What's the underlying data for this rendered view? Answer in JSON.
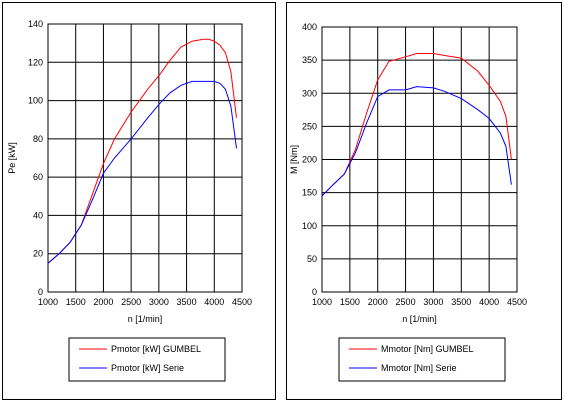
{
  "chart_data": [
    {
      "type": "line",
      "title": "",
      "xlabel": "n [1/min]",
      "ylabel": "Pe [kW]",
      "xlim": [
        1000,
        4500
      ],
      "ylim": [
        0,
        140
      ],
      "x_ticks": [
        1000,
        1500,
        2000,
        2500,
        3000,
        3500,
        4000,
        4500
      ],
      "y_ticks": [
        0,
        20,
        40,
        60,
        80,
        100,
        120,
        140
      ],
      "grid": true,
      "legend_position": "bottom",
      "series": [
        {
          "name": "Pmotor [kW] GUMBEL",
          "color": "#ff0000",
          "x": [
            1000,
            1200,
            1400,
            1600,
            1800,
            2000,
            2200,
            2500,
            2800,
            3000,
            3200,
            3400,
            3600,
            3800,
            3900,
            4000,
            4100,
            4200,
            4300,
            4400
          ],
          "y": [
            15,
            20,
            26,
            35,
            51,
            67,
            80,
            94,
            106,
            113,
            121,
            128,
            131,
            132,
            132,
            131,
            129,
            125,
            115,
            91
          ]
        },
        {
          "name": "Pmotor [kW] Serie",
          "color": "#0000ff",
          "x": [
            1000,
            1200,
            1400,
            1600,
            1800,
            2000,
            2200,
            2500,
            2800,
            3000,
            3200,
            3400,
            3600,
            3800,
            3900,
            4000,
            4100,
            4200,
            4300,
            4400
          ],
          "y": [
            15,
            20,
            26,
            35,
            48,
            62,
            70,
            80,
            91,
            98,
            104,
            108,
            110,
            110,
            110,
            110,
            109,
            106,
            97,
            75
          ]
        }
      ]
    },
    {
      "type": "line",
      "title": "",
      "xlabel": "n [1/min]",
      "ylabel": "M [Nm]",
      "xlim": [
        1000,
        4500
      ],
      "ylim": [
        0,
        400
      ],
      "x_ticks": [
        1000,
        1500,
        2000,
        2500,
        3000,
        3500,
        4000,
        4500
      ],
      "y_ticks": [
        0,
        50,
        100,
        150,
        200,
        250,
        300,
        350,
        400
      ],
      "grid": true,
      "legend_position": "bottom",
      "series": [
        {
          "name": "Mmotor [Nm] GUMBEL",
          "color": "#ff0000",
          "x": [
            1000,
            1200,
            1400,
            1600,
            1800,
            2000,
            2200,
            2500,
            2700,
            3000,
            3200,
            3500,
            3800,
            4000,
            4200,
            4300,
            4400
          ],
          "y": [
            145,
            162,
            178,
            215,
            270,
            320,
            348,
            355,
            360,
            360,
            357,
            353,
            333,
            312,
            288,
            265,
            200
          ]
        },
        {
          "name": "Mmotor [Nm] Serie",
          "color": "#0000ff",
          "x": [
            1000,
            1200,
            1400,
            1600,
            1800,
            2000,
            2200,
            2500,
            2700,
            3000,
            3200,
            3500,
            3800,
            4000,
            4200,
            4300,
            4400
          ],
          "y": [
            145,
            162,
            178,
            210,
            255,
            295,
            305,
            305,
            310,
            308,
            303,
            292,
            275,
            262,
            240,
            220,
            162
          ]
        }
      ]
    }
  ]
}
